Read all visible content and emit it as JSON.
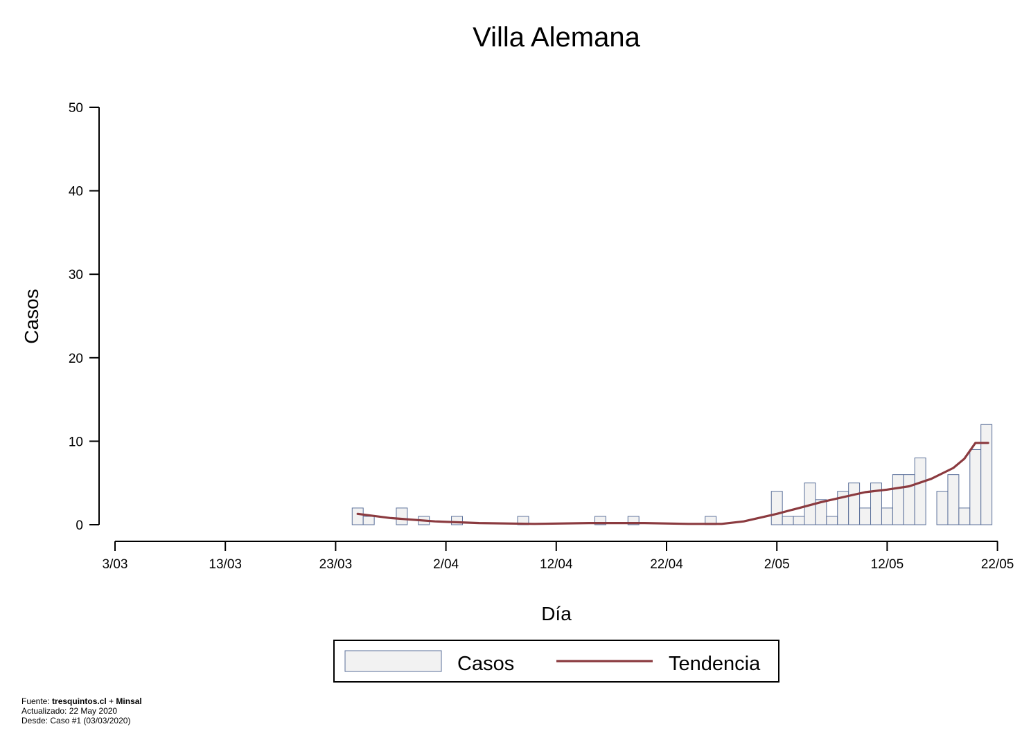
{
  "chart_data": {
    "type": "bar",
    "title": "Villa Alemana",
    "xlabel": "Día",
    "ylabel": "Casos",
    "ylim": [
      0,
      50
    ],
    "y_ticks": [
      "0",
      "10",
      "20",
      "30",
      "40",
      "50"
    ],
    "x_ticks": [
      "3/03",
      "13/03",
      "23/03",
      "2/04",
      "12/04",
      "22/04",
      "2/05",
      "12/05",
      "22/05"
    ],
    "x_start": "2020-03-03",
    "grid": false,
    "legend_position": "bottom",
    "colors": {
      "bar_fill": "#f2f2f2",
      "bar_stroke": "#5a6f99",
      "trend": "#8b3a3f"
    },
    "series": [
      {
        "name": "Casos",
        "type": "bar",
        "x": [
          "2020-03-25",
          "2020-03-26",
          "2020-03-29",
          "2020-03-31",
          "2020-04-03",
          "2020-04-09",
          "2020-04-16",
          "2020-04-19",
          "2020-04-26",
          "2020-05-02",
          "2020-05-03",
          "2020-05-04",
          "2020-05-05",
          "2020-05-06",
          "2020-05-07",
          "2020-05-08",
          "2020-05-09",
          "2020-05-10",
          "2020-05-11",
          "2020-05-12",
          "2020-05-13",
          "2020-05-14",
          "2020-05-15",
          "2020-05-17",
          "2020-05-18",
          "2020-05-19",
          "2020-05-20",
          "2020-05-21"
        ],
        "values": [
          2,
          1,
          2,
          1,
          1,
          1,
          1,
          1,
          1,
          4,
          1,
          1,
          5,
          3,
          1,
          4,
          5,
          2,
          5,
          2,
          6,
          6,
          8,
          4,
          6,
          2,
          9,
          12
        ]
      },
      {
        "name": "Tendencia",
        "type": "line",
        "x": [
          "2020-03-25",
          "2020-03-28",
          "2020-04-01",
          "2020-04-05",
          "2020-04-10",
          "2020-04-15",
          "2020-04-20",
          "2020-04-24",
          "2020-04-27",
          "2020-04-29",
          "2020-05-02",
          "2020-05-04",
          "2020-05-06",
          "2020-05-08",
          "2020-05-10",
          "2020-05-12",
          "2020-05-14",
          "2020-05-16",
          "2020-05-18",
          "2020-05-19",
          "2020-05-20",
          "2020-05-21"
        ],
        "values": [
          1.3,
          0.8,
          0.4,
          0.2,
          0.1,
          0.2,
          0.2,
          0.1,
          0.1,
          0.4,
          1.3,
          2.0,
          2.7,
          3.3,
          3.9,
          4.2,
          4.6,
          5.5,
          6.8,
          7.9,
          9.8,
          9.8
        ]
      }
    ]
  },
  "footer": {
    "source_prefix": "Fuente: ",
    "source_a": "tresquintos.cl",
    "source_join": " + ",
    "source_b": "Minsal",
    "updated": "Actualizado: 22 May 2020",
    "since": "Desde: Caso #1  (03/03/2020)"
  }
}
